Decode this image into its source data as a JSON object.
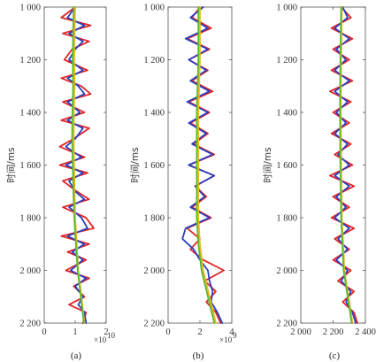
{
  "figure": {
    "captions": [
      "(a)",
      "(b)",
      "(c)"
    ]
  },
  "chart_data": [
    {
      "type": "line",
      "caption": "(a)",
      "ylabel": "时间/ms",
      "xlabel": "",
      "ylim": [
        1000,
        2200
      ],
      "y_inverted": true,
      "xlim": [
        0,
        2
      ],
      "x_ticks": [
        "0",
        "1",
        "2"
      ],
      "x_tick_values": [
        0,
        1,
        2
      ],
      "x_multiplier": "×10",
      "x_multiplier_exp": "10",
      "y_ticks": [
        "1 000",
        "1 200",
        "1 400",
        "1 600",
        "1 800",
        "2 000",
        "2 200"
      ],
      "y_tick_values": [
        1000,
        1200,
        1400,
        1600,
        1800,
        2000,
        2200
      ],
      "colors": {
        "blue": "#2a3fbf",
        "red": "#e02626",
        "green": "#5cb82e",
        "yellow": "#e8b820"
      },
      "series": [
        {
          "color": "red",
          "y": [
            1000,
            1040,
            1070,
            1100,
            1130,
            1160,
            1200,
            1240,
            1270,
            1300,
            1330,
            1360,
            1400,
            1430,
            1460,
            1500,
            1530,
            1570,
            1600,
            1630,
            1660,
            1700,
            1730,
            1760,
            1800,
            1840,
            1870,
            1900,
            1930,
            1960,
            2000,
            2030,
            2060,
            2100,
            2130,
            2160,
            2200
          ],
          "x": [
            1.0,
            0.55,
            1.5,
            0.6,
            1.45,
            0.9,
            0.65,
            1.4,
            0.55,
            1.2,
            1.5,
            0.6,
            1.3,
            0.55,
            1.45,
            0.95,
            0.5,
            1.3,
            0.5,
            1.4,
            0.6,
            1.05,
            1.45,
            0.6,
            1.35,
            1.6,
            0.55,
            1.45,
            0.75,
            1.35,
            0.7,
            1.45,
            0.95,
            1.3,
            0.8,
            1.35,
            1.25
          ]
        },
        {
          "color": "blue",
          "y": [
            1000,
            1040,
            1070,
            1100,
            1130,
            1160,
            1200,
            1240,
            1270,
            1300,
            1330,
            1360,
            1400,
            1430,
            1460,
            1500,
            1530,
            1570,
            1600,
            1630,
            1660,
            1700,
            1730,
            1760,
            1800,
            1840,
            1870,
            1900,
            1930,
            1960,
            2000,
            2030,
            2060,
            2100,
            2130,
            2160,
            2200
          ],
          "x": [
            1.0,
            0.75,
            1.3,
            0.8,
            1.25,
            1.0,
            0.8,
            1.25,
            0.75,
            1.1,
            1.3,
            0.75,
            1.15,
            0.75,
            1.25,
            1.0,
            0.7,
            1.2,
            0.7,
            1.25,
            0.8,
            1.0,
            1.3,
            0.8,
            1.2,
            1.4,
            0.75,
            1.3,
            0.9,
            1.25,
            0.85,
            1.35,
            1.0,
            1.25,
            1.1,
            1.3,
            1.35
          ]
        },
        {
          "color": "yellow",
          "y": [
            1000,
            1100,
            1200,
            1300,
            1400,
            1500,
            1600,
            1700,
            1800,
            1900,
            2000,
            2100,
            2200
          ],
          "x": [
            1.0,
            0.98,
            0.97,
            0.98,
            0.96,
            0.95,
            0.97,
            0.98,
            1.0,
            1.05,
            1.1,
            1.2,
            1.3
          ]
        },
        {
          "color": "green",
          "y": [
            1000,
            1100,
            1200,
            1300,
            1400,
            1500,
            1600,
            1700,
            1800,
            1900,
            2000,
            2100,
            2200
          ],
          "x": [
            0.95,
            0.93,
            0.92,
            0.93,
            0.91,
            0.9,
            0.92,
            0.94,
            0.97,
            1.02,
            1.08,
            1.18,
            1.28
          ]
        }
      ]
    },
    {
      "type": "line",
      "caption": "(b)",
      "ylabel": "时间/ms",
      "xlabel": "",
      "ylim": [
        1000,
        2200
      ],
      "y_inverted": true,
      "xlim": [
        0,
        4
      ],
      "x_ticks": [
        "0",
        "2",
        "4"
      ],
      "x_tick_values": [
        0,
        2,
        4
      ],
      "x_multiplier": "×10",
      "x_multiplier_exp": "9",
      "y_ticks": [
        "1 000",
        "1 200",
        "1 400",
        "1 600",
        "1 800",
        "2 000",
        "2 200"
      ],
      "y_tick_values": [
        1000,
        1200,
        1400,
        1600,
        1800,
        2000,
        2200
      ],
      "colors": {
        "blue": "#2a3fbf",
        "red": "#e02626",
        "green": "#5cb82e",
        "yellow": "#e8b820"
      },
      "series": [
        {
          "color": "red",
          "y": [
            1000,
            1040,
            1080,
            1120,
            1160,
            1200,
            1240,
            1280,
            1320,
            1360,
            1400,
            1440,
            1480,
            1520,
            1560,
            1600,
            1640,
            1680,
            1720,
            1760,
            1800,
            1840,
            1880,
            1920,
            1960,
            2000,
            2040,
            2080,
            2120,
            2160,
            2200
          ],
          "x": [
            2.0,
            1.5,
            2.7,
            1.2,
            2.6,
            1.3,
            2.5,
            1.5,
            2.8,
            1.3,
            2.6,
            1.4,
            2.5,
            1.6,
            2.9,
            1.3,
            2.9,
            1.7,
            2.4,
            1.5,
            2.7,
            1.2,
            2.0,
            1.4,
            2.2,
            3.5,
            2.3,
            3.0,
            2.4,
            3.0,
            3.3
          ]
        },
        {
          "color": "blue",
          "y": [
            1000,
            1040,
            1080,
            1120,
            1160,
            1200,
            1240,
            1280,
            1320,
            1360,
            1400,
            1440,
            1480,
            1520,
            1560,
            1600,
            1640,
            1680,
            1720,
            1760,
            1800,
            1840,
            1880,
            1920,
            1960,
            2000,
            2040,
            2080,
            2120,
            2160,
            2200
          ],
          "x": [
            2.2,
            1.4,
            2.5,
            1.1,
            2.5,
            1.3,
            2.4,
            1.4,
            2.6,
            1.2,
            2.5,
            1.3,
            2.4,
            1.5,
            2.8,
            1.3,
            2.9,
            1.7,
            2.3,
            1.4,
            2.6,
            1.1,
            0.9,
            1.6,
            2.0,
            2.5,
            2.6,
            2.8,
            2.7,
            3.1,
            3.4
          ]
        },
        {
          "color": "yellow",
          "y": [
            1000,
            1200,
            1400,
            1600,
            1800,
            1900,
            2000,
            2100,
            2200
          ],
          "x": [
            2.0,
            2.0,
            1.9,
            1.9,
            1.9,
            2.0,
            2.2,
            2.6,
            3.0
          ]
        },
        {
          "color": "green",
          "y": [
            1000,
            1200,
            1400,
            1600,
            1800,
            1900,
            2000,
            2100,
            2200
          ],
          "x": [
            1.9,
            1.9,
            1.8,
            1.8,
            1.8,
            1.9,
            2.1,
            2.5,
            2.9
          ]
        }
      ]
    },
    {
      "type": "line",
      "caption": "(c)",
      "ylabel": "时间/ms",
      "xlabel": "",
      "ylim": [
        1000,
        2200
      ],
      "y_inverted": true,
      "xlim": [
        2000,
        2400
      ],
      "x_ticks": [
        "2 000",
        "2 200",
        "2 400"
      ],
      "x_tick_values": [
        2000,
        2200,
        2400
      ],
      "x_multiplier": "",
      "x_multiplier_exp": "",
      "y_ticks": [
        "1 000",
        "1 200",
        "1 400",
        "1 600",
        "1 800",
        "2 000",
        "2 200"
      ],
      "y_tick_values": [
        1000,
        1200,
        1400,
        1600,
        1800,
        2000,
        2200
      ],
      "colors": {
        "blue": "#2a3fbf",
        "red": "#e02626",
        "green": "#5cb82e",
        "yellow": "#e8b820"
      },
      "series": [
        {
          "color": "red",
          "y": [
            1000,
            1040,
            1080,
            1120,
            1160,
            1200,
            1240,
            1280,
            1320,
            1360,
            1400,
            1440,
            1480,
            1520,
            1560,
            1600,
            1640,
            1680,
            1720,
            1760,
            1800,
            1840,
            1880,
            1920,
            1960,
            2000,
            2040,
            2080,
            2120,
            2160,
            2200
          ],
          "x": [
            2250,
            2310,
            2190,
            2320,
            2200,
            2300,
            2190,
            2320,
            2180,
            2310,
            2200,
            2300,
            2190,
            2310,
            2210,
            2320,
            2180,
            2330,
            2200,
            2300,
            2190,
            2330,
            2210,
            2300,
            2200,
            2310,
            2230,
            2330,
            2260,
            2330,
            2350
          ]
        },
        {
          "color": "blue",
          "y": [
            1000,
            1040,
            1080,
            1120,
            1160,
            1200,
            1240,
            1280,
            1320,
            1360,
            1400,
            1440,
            1480,
            1520,
            1560,
            1600,
            1640,
            1680,
            1720,
            1760,
            1800,
            1840,
            1880,
            1920,
            1960,
            2000,
            2040,
            2080,
            2120,
            2160,
            2200
          ],
          "x": [
            2260,
            2290,
            2210,
            2300,
            2220,
            2280,
            2210,
            2300,
            2210,
            2290,
            2220,
            2280,
            2210,
            2290,
            2230,
            2300,
            2210,
            2300,
            2220,
            2280,
            2210,
            2300,
            2230,
            2290,
            2220,
            2290,
            2250,
            2310,
            2280,
            2320,
            2340
          ]
        },
        {
          "color": "yellow",
          "y": [
            1000,
            1200,
            1400,
            1600,
            1800,
            2000,
            2200
          ],
          "x": [
            2255,
            2250,
            2248,
            2250,
            2255,
            2270,
            2320
          ]
        },
        {
          "color": "green",
          "y": [
            1000,
            1200,
            1400,
            1600,
            1800,
            2000,
            2200
          ],
          "x": [
            2250,
            2245,
            2243,
            2245,
            2250,
            2265,
            2315
          ]
        }
      ]
    }
  ]
}
